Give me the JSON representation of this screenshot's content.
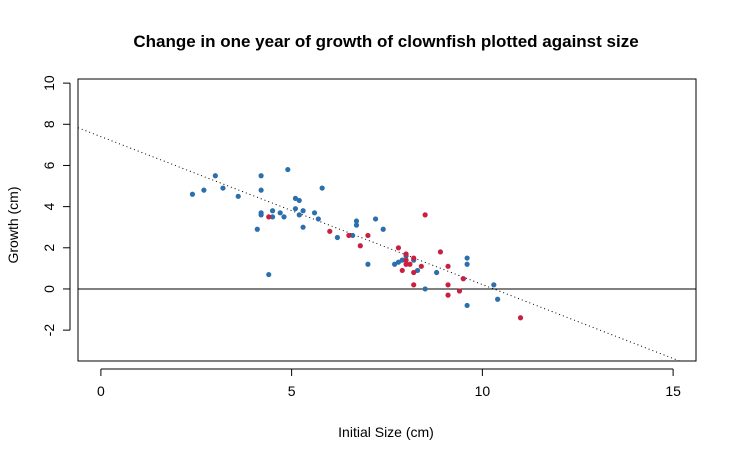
{
  "chart_data": {
    "type": "scatter",
    "title": "Change in one year of growth of clownfish plotted against size",
    "xlabel": "Initial Size (cm)",
    "ylabel": "Growth (cm)",
    "xlim": [
      -0.6,
      15.6
    ],
    "ylim": [
      -3.5,
      10.2
    ],
    "xticks": [
      "0",
      "5",
      "10",
      "15"
    ],
    "yticks": [
      "-2",
      "0",
      "2",
      "4",
      "6",
      "8",
      "10"
    ],
    "grid": false,
    "legend": "none",
    "reference_line": {
      "y": 0,
      "style": "solid"
    },
    "trend_line": {
      "intercept": 7.4,
      "slope": -0.7185,
      "style": "dotted"
    },
    "series": [
      {
        "color": "#2b6fad",
        "points": [
          [
            2.4,
            4.6
          ],
          [
            2.7,
            4.8
          ],
          [
            3.0,
            5.5
          ],
          [
            3.2,
            4.9
          ],
          [
            3.6,
            4.5
          ],
          [
            4.1,
            2.9
          ],
          [
            4.2,
            3.6
          ],
          [
            4.2,
            3.7
          ],
          [
            4.2,
            4.8
          ],
          [
            4.2,
            5.5
          ],
          [
            4.4,
            0.7
          ],
          [
            4.5,
            3.5
          ],
          [
            4.5,
            3.8
          ],
          [
            4.7,
            3.7
          ],
          [
            4.8,
            3.5
          ],
          [
            4.9,
            5.8
          ],
          [
            5.1,
            3.9
          ],
          [
            5.1,
            4.4
          ],
          [
            5.2,
            3.6
          ],
          [
            5.2,
            4.3
          ],
          [
            5.3,
            3.0
          ],
          [
            5.3,
            3.8
          ],
          [
            5.6,
            3.7
          ],
          [
            5.7,
            3.4
          ],
          [
            5.8,
            4.9
          ],
          [
            6.2,
            2.5
          ],
          [
            6.6,
            2.6
          ],
          [
            6.7,
            3.1
          ],
          [
            6.7,
            3.3
          ],
          [
            7.0,
            1.2
          ],
          [
            7.2,
            3.4
          ],
          [
            7.4,
            2.9
          ],
          [
            7.7,
            1.2
          ],
          [
            7.8,
            1.3
          ],
          [
            7.9,
            1.4
          ],
          [
            8.0,
            1.6
          ],
          [
            8.2,
            1.4
          ],
          [
            8.3,
            0.9
          ],
          [
            8.5,
            0.0
          ],
          [
            8.8,
            0.8
          ],
          [
            9.5,
            0.5
          ],
          [
            9.6,
            -0.8
          ],
          [
            9.6,
            1.2
          ],
          [
            9.6,
            1.5
          ],
          [
            10.3,
            0.2
          ],
          [
            10.4,
            -0.5
          ]
        ]
      },
      {
        "color": "#c9203f",
        "points": [
          [
            4.4,
            3.5
          ],
          [
            6.0,
            2.8
          ],
          [
            6.5,
            2.6
          ],
          [
            6.8,
            2.1
          ],
          [
            7.0,
            2.6
          ],
          [
            7.8,
            2.0
          ],
          [
            7.9,
            0.9
          ],
          [
            8.0,
            1.2
          ],
          [
            8.0,
            1.4
          ],
          [
            8.0,
            1.7
          ],
          [
            8.1,
            1.2
          ],
          [
            8.2,
            0.2
          ],
          [
            8.2,
            0.8
          ],
          [
            8.2,
            1.5
          ],
          [
            8.4,
            1.1
          ],
          [
            8.5,
            3.6
          ],
          [
            8.9,
            1.8
          ],
          [
            9.1,
            -0.3
          ],
          [
            9.1,
            0.2
          ],
          [
            9.1,
            1.1
          ],
          [
            9.4,
            -0.1
          ],
          [
            9.5,
            0.5
          ],
          [
            11.0,
            -1.4
          ]
        ]
      }
    ]
  }
}
